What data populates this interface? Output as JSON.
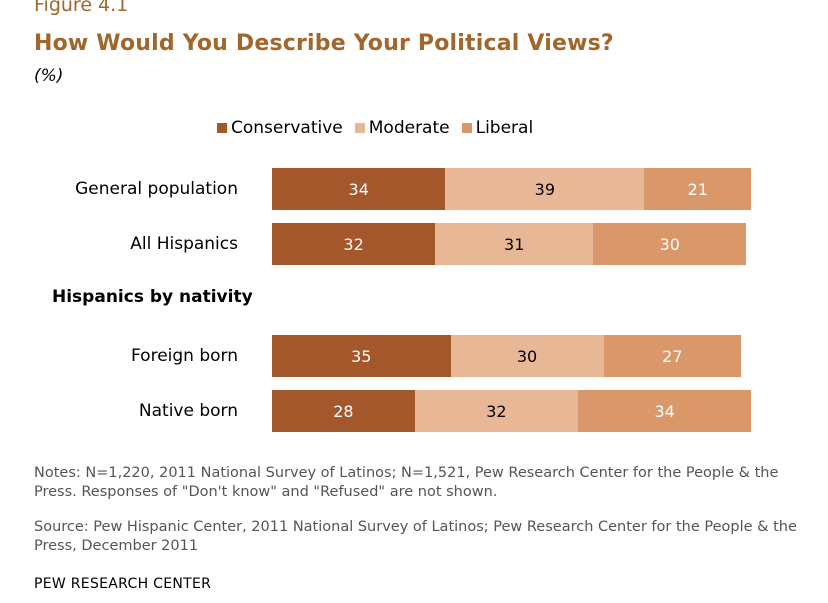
{
  "figure_label": "Figure 4.1",
  "section_heading": "Hispanics by nativity",
  "notes": "Notes: N=1,220, 2011 National Survey of Latinos; N=1,521, Pew Research Center for the People & the Press. Responses of \"Don't know\" and \"Refused\" are not shown.",
  "source": "Source: Pew Hispanic Center, 2011 National Survey of Latinos; Pew Research Center for the People & the Press, December 2011",
  "footer": "PEW RESEARCH CENTER",
  "colors": {
    "conservative": "#a4572b",
    "moderate": "#e8b796",
    "liberal": "#d9976a",
    "title": "#a0662c"
  },
  "chart_data": {
    "type": "bar",
    "orientation": "horizontal",
    "stacked": true,
    "title": "How Would You Describe Your Political Views?",
    "subtitle": "(%)",
    "legend_position": "top",
    "categories": [
      "General population",
      "All Hispanics",
      "Foreign born",
      "Native born"
    ],
    "series": [
      {
        "name": "Conservative",
        "values": [
          34,
          32,
          35,
          28
        ]
      },
      {
        "name": "Moderate",
        "values": [
          39,
          31,
          30,
          32
        ]
      },
      {
        "name": "Liberal",
        "values": [
          21,
          30,
          27,
          34
        ]
      }
    ]
  }
}
